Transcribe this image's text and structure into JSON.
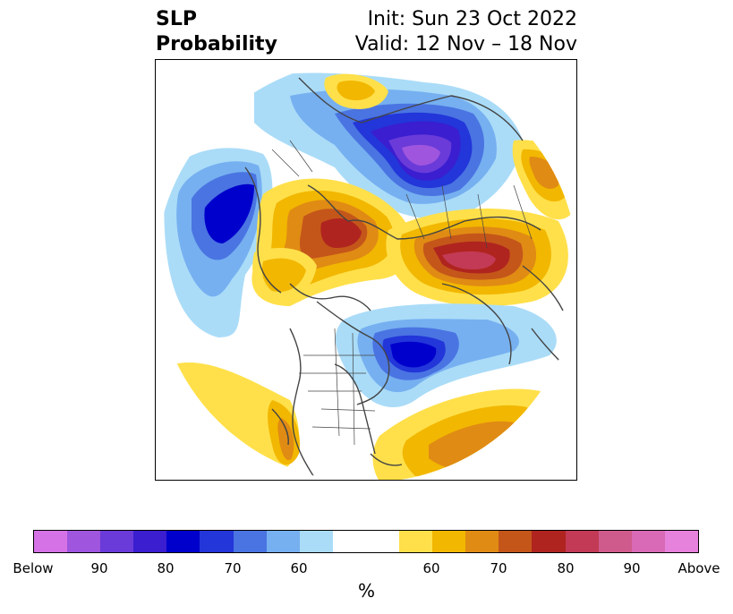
{
  "title": {
    "left_line1": "SLP",
    "left_line2": "Probability",
    "right_line1": "Init: Sun 23 Oct 2022",
    "right_line2": "Valid: 12 Nov – 18 Nov"
  },
  "colorbar": {
    "unit": "%",
    "colors": [
      "#d573e6",
      "#9f55de",
      "#6a3bd8",
      "#3a1ed0",
      "#0000cc",
      "#2236d9",
      "#4a74e2",
      "#76b0f0",
      "#aadcf8",
      "#ffffff",
      "#ffe04a",
      "#f2b700",
      "#e08b14",
      "#c4561a",
      "#b0241f",
      "#c23a55",
      "#cf5b8d",
      "#d86ab7",
      "#e681dc"
    ],
    "tick_labels": [
      "Below",
      "90",
      "80",
      "70",
      "60",
      "60",
      "70",
      "80",
      "90",
      "Above"
    ]
  },
  "map": {
    "projection": "north-polar-stereographic",
    "regions": [
      {
        "name": "north-atlantic-low-anomaly",
        "category": "below",
        "peak": "80-85"
      },
      {
        "name": "arctic-low-anomaly",
        "category": "below",
        "peak": "90-95"
      },
      {
        "name": "alaska-aleutian-low-anomaly",
        "category": "below",
        "peak": "80-85"
      },
      {
        "name": "scandinavia-high-anomaly",
        "category": "above",
        "peak": "75-80"
      },
      {
        "name": "siberia-high-anomaly",
        "category": "above",
        "peak": "80-85"
      },
      {
        "name": "east-asia-high-anomaly",
        "category": "above",
        "peak": "65-70"
      },
      {
        "name": "southwest-us-high-anomaly",
        "category": "above",
        "peak": "60-65"
      },
      {
        "name": "subtropical-pacific-high-anomaly",
        "category": "above",
        "peak": "65-70"
      }
    ]
  }
}
